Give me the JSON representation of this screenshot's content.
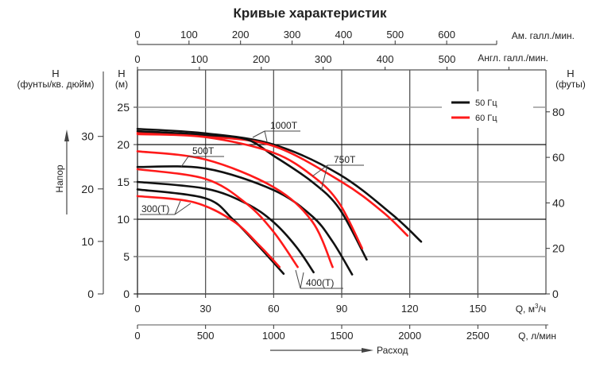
{
  "chart_data": {
    "type": "line",
    "title": "Кривые характеристик",
    "xlabel": "Q, м³/ч",
    "xlabel_unit_main": "Q, м",
    "xlabel_unit_sup": "3",
    "xlabel_unit_tail": "/ч",
    "xlim": [
      0,
      180
    ],
    "xticks": [
      0,
      30,
      60,
      90,
      120,
      150
    ],
    "ylabel": "H (м)",
    "ylabel_top": "H",
    "ylabel_unit": "(м)",
    "ylim": [
      0,
      30
    ],
    "yticks": [
      0,
      5,
      10,
      15,
      20,
      25
    ],
    "grid": true,
    "secondary_axes": {
      "bottom_lpm": {
        "label": "Q, л/мин",
        "ticks": [
          0,
          500,
          1000,
          1500,
          2000,
          2500
        ]
      },
      "top_us_gpm": {
        "label": "Ам. галл./мин.",
        "ticks": [
          0,
          100,
          200,
          300,
          400,
          500,
          600
        ]
      },
      "top_imp_gpm": {
        "label": "Англ. галл./мин.",
        "ticks": [
          0,
          100,
          200,
          300,
          400,
          500
        ]
      },
      "left_psi": {
        "label_top": "H",
        "label_unit": "(фунты/кв. дюйм)",
        "ticks": [
          0,
          10,
          20,
          30
        ]
      },
      "right_ft": {
        "label_top": "H",
        "label_unit": "(футы)",
        "ticks": [
          0,
          20,
          40,
          60,
          80
        ]
      }
    },
    "axis_arrows": {
      "y": "Напор",
      "x": "Расход"
    },
    "legend": {
      "placement": "top-right",
      "entries": [
        {
          "label": "50 Гц",
          "color": "#111111"
        },
        {
          "label": "60 Гц",
          "color": "#ff1a1a"
        }
      ]
    },
    "curve_labels": [
      "1000T",
      "750T",
      "500T",
      "400(T)",
      "300(T)"
    ],
    "series": [
      {
        "model": "1000T",
        "freq": "50 Гц",
        "color": "#111111",
        "points": [
          [
            0,
            22.1
          ],
          [
            30,
            21.5
          ],
          [
            60,
            20.0
          ],
          [
            89,
            16.0
          ],
          [
            112,
            10.7
          ],
          [
            125,
            7.0
          ]
        ]
      },
      {
        "model": "1000T",
        "freq": "60 Гц",
        "color": "#ff1a1a",
        "points": [
          [
            0,
            21.6
          ],
          [
            30,
            21.1
          ],
          [
            60,
            19.8
          ],
          [
            90,
            15.0
          ],
          [
            108,
            11.0
          ],
          [
            119,
            7.8
          ]
        ]
      },
      {
        "model": "750T",
        "freq": "50 Гц",
        "color": "#111111",
        "points": [
          [
            0,
            21.8
          ],
          [
            30,
            21.3
          ],
          [
            48,
            20.7
          ],
          [
            60,
            18.5
          ],
          [
            77,
            15.0
          ],
          [
            89,
            11.4
          ],
          [
            101,
            4.6
          ]
        ]
      },
      {
        "model": "750T",
        "freq": "60 Гц",
        "color": "#ff1a1a",
        "points": [
          [
            0,
            21.4
          ],
          [
            30,
            21.0
          ],
          [
            60,
            18.9
          ],
          [
            78,
            15.6
          ],
          [
            89,
            12.1
          ],
          [
            99,
            6.1
          ]
        ]
      },
      {
        "model": "500T",
        "freq": "50 Гц",
        "color": "#111111",
        "points": [
          [
            0,
            17.0
          ],
          [
            30,
            16.8
          ],
          [
            60,
            13.9
          ],
          [
            77,
            10.4
          ],
          [
            86,
            7.0
          ],
          [
            94.6,
            2.6
          ]
        ]
      },
      {
        "model": "500T",
        "freq": "60 Гц",
        "color": "#ff1a1a",
        "points": [
          [
            0,
            19.1
          ],
          [
            30,
            18.0
          ],
          [
            60,
            14.3
          ],
          [
            77,
            9.7
          ],
          [
            86,
            3.6
          ]
        ]
      },
      {
        "model": "400(T)",
        "freq": "50 Гц",
        "color": "#111111",
        "points": [
          [
            0,
            15.0
          ],
          [
            30,
            14.1
          ],
          [
            48,
            12.1
          ],
          [
            60,
            9.6
          ],
          [
            70,
            6.3
          ],
          [
            77.6,
            2.9
          ]
        ]
      },
      {
        "model": "400(T)",
        "freq": "60 Гц",
        "color": "#ff1a1a",
        "points": [
          [
            0,
            16.7
          ],
          [
            30,
            15.4
          ],
          [
            48,
            12.1
          ],
          [
            60,
            8.3
          ],
          [
            70.6,
            3.6
          ]
        ]
      },
      {
        "model": "300(T)",
        "freq": "50 Гц",
        "color": "#111111",
        "points": [
          [
            0,
            14.0
          ],
          [
            30,
            12.8
          ],
          [
            42,
            10.0
          ],
          [
            54,
            6.2
          ],
          [
            64.4,
            2.7
          ]
        ]
      },
      {
        "model": "300(T)",
        "freq": "60 Гц",
        "color": "#ff1a1a",
        "points": [
          [
            0,
            13.1
          ],
          [
            24.5,
            12.3
          ],
          [
            42,
            9.8
          ],
          [
            54,
            6.4
          ],
          [
            62.6,
            3.6
          ]
        ]
      }
    ]
  }
}
